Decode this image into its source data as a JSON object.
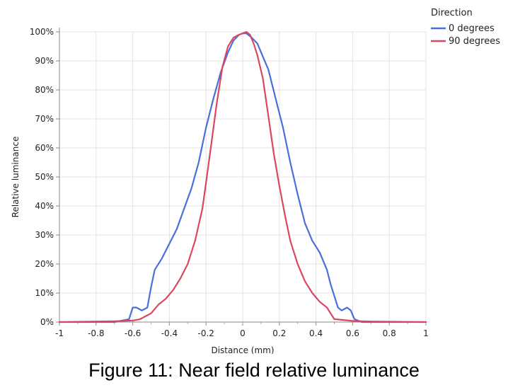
{
  "caption": "Figure 11: Near field relative luminance",
  "chart_data": {
    "type": "line",
    "xlabel": "Distance (mm)",
    "ylabel": "Relative luminance",
    "xlim": [
      -1,
      1
    ],
    "ylim": [
      0,
      100
    ],
    "x_ticks": [
      -1,
      -0.8,
      -0.6,
      -0.4,
      -0.2,
      0,
      0.2,
      0.4,
      0.6,
      0.8,
      1
    ],
    "x_tick_labels": [
      "-1",
      "-0.8",
      "-0.6",
      "-0.4",
      "-0.2",
      "0",
      "0.2",
      "0.4",
      "0.6",
      "0.8",
      "1"
    ],
    "y_ticks": [
      0,
      10,
      20,
      30,
      40,
      50,
      60,
      70,
      80,
      90,
      100
    ],
    "y_tick_labels": [
      "0%",
      "10%",
      "20%",
      "30%",
      "40%",
      "50%",
      "60%",
      "70%",
      "80%",
      "90%",
      "100%"
    ],
    "grid": true,
    "legend": {
      "title": "Direction",
      "position": "top-right"
    },
    "series": [
      {
        "name": "0 degrees",
        "color": "#4a6fdc",
        "points": [
          [
            -1,
            0
          ],
          [
            -0.7,
            0
          ],
          [
            -0.62,
            1
          ],
          [
            -0.6,
            5
          ],
          [
            -0.58,
            5
          ],
          [
            -0.55,
            4
          ],
          [
            -0.52,
            5
          ],
          [
            -0.5,
            12
          ],
          [
            -0.48,
            18
          ],
          [
            -0.44,
            22
          ],
          [
            -0.4,
            27
          ],
          [
            -0.36,
            32
          ],
          [
            -0.32,
            39
          ],
          [
            -0.28,
            46
          ],
          [
            -0.24,
            55
          ],
          [
            -0.2,
            67
          ],
          [
            -0.16,
            77
          ],
          [
            -0.12,
            86
          ],
          [
            -0.08,
            93
          ],
          [
            -0.05,
            97
          ],
          [
            -0.02,
            99
          ],
          [
            0,
            99.5
          ],
          [
            0.02,
            99.5
          ],
          [
            0.05,
            98
          ],
          [
            0.08,
            96
          ],
          [
            0.1,
            93
          ],
          [
            0.14,
            87
          ],
          [
            0.18,
            77
          ],
          [
            0.22,
            67
          ],
          [
            0.26,
            55
          ],
          [
            0.3,
            44
          ],
          [
            0.34,
            34
          ],
          [
            0.38,
            28
          ],
          [
            0.42,
            24
          ],
          [
            0.46,
            18
          ],
          [
            0.48,
            13
          ],
          [
            0.5,
            9
          ],
          [
            0.52,
            5
          ],
          [
            0.54,
            4
          ],
          [
            0.57,
            5
          ],
          [
            0.59,
            4
          ],
          [
            0.61,
            1
          ],
          [
            0.65,
            0
          ],
          [
            1,
            0
          ]
        ]
      },
      {
        "name": "90 degrees",
        "color": "#d9485f",
        "points": [
          [
            -1,
            0
          ],
          [
            -0.7,
            0.3
          ],
          [
            -0.6,
            0.5
          ],
          [
            -0.56,
            1
          ],
          [
            -0.5,
            3
          ],
          [
            -0.46,
            6
          ],
          [
            -0.42,
            8
          ],
          [
            -0.38,
            11
          ],
          [
            -0.34,
            15
          ],
          [
            -0.3,
            20
          ],
          [
            -0.26,
            28
          ],
          [
            -0.22,
            39
          ],
          [
            -0.2,
            48
          ],
          [
            -0.17,
            62
          ],
          [
            -0.14,
            76
          ],
          [
            -0.11,
            88
          ],
          [
            -0.08,
            95
          ],
          [
            -0.05,
            98
          ],
          [
            -0.02,
            99
          ],
          [
            0,
            99.5
          ],
          [
            0.02,
            100
          ],
          [
            0.04,
            99
          ],
          [
            0.06,
            96
          ],
          [
            0.08,
            92
          ],
          [
            0.11,
            84
          ],
          [
            0.14,
            71
          ],
          [
            0.17,
            58
          ],
          [
            0.2,
            47
          ],
          [
            0.23,
            37
          ],
          [
            0.26,
            28
          ],
          [
            0.3,
            20
          ],
          [
            0.34,
            14
          ],
          [
            0.38,
            10
          ],
          [
            0.42,
            7
          ],
          [
            0.46,
            5
          ],
          [
            0.48,
            3
          ],
          [
            0.5,
            1
          ],
          [
            0.55,
            0.7
          ],
          [
            0.6,
            0.4
          ],
          [
            0.7,
            0.2
          ],
          [
            1,
            0
          ]
        ]
      }
    ]
  }
}
